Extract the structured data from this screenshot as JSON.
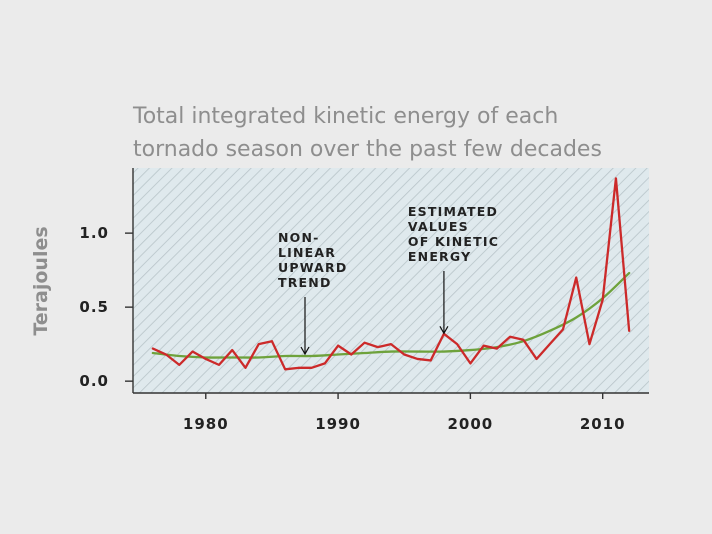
{
  "colors": {
    "background": "#ebebeb",
    "plot_background": "#dfe9ed",
    "hatch": "#b8c4c9",
    "observed": "#cc2a2a",
    "trend": "#6ea23c",
    "title": "#8e8e8e",
    "text": "#222222"
  },
  "chart_data": {
    "type": "line",
    "title_lines": [
      "Total integrated kinetic energy of each",
      "tornado season over the past few decades"
    ],
    "ylabel": "Terajoules",
    "xlabel": "",
    "xlim": [
      1974.5,
      2013.5
    ],
    "ylim": [
      -0.08,
      1.44
    ],
    "x_ticks": [
      {
        "value": 1980,
        "label": "1980"
      },
      {
        "value": 1990,
        "label": "1990"
      },
      {
        "value": 2000,
        "label": "2000"
      },
      {
        "value": 2010,
        "label": "2010"
      }
    ],
    "y_ticks": [
      {
        "value": 0.0,
        "label": "0.0"
      },
      {
        "value": 0.5,
        "label": "0.5"
      },
      {
        "value": 1.0,
        "label": "1.0"
      }
    ],
    "series": [
      {
        "name": "Estimated values of kinetic energy",
        "color": "#cc2a2a",
        "x": [
          1976,
          1977,
          1978,
          1979,
          1980,
          1981,
          1982,
          1983,
          1984,
          1985,
          1986,
          1987,
          1988,
          1989,
          1990,
          1991,
          1992,
          1993,
          1994,
          1995,
          1996,
          1997,
          1998,
          1999,
          2000,
          2001,
          2002,
          2003,
          2004,
          2005,
          2006,
          2007,
          2008,
          2009,
          2010,
          2011,
          2012
        ],
        "values": [
          0.22,
          0.18,
          0.11,
          0.2,
          0.15,
          0.11,
          0.21,
          0.09,
          0.25,
          0.27,
          0.08,
          0.09,
          0.09,
          0.12,
          0.24,
          0.18,
          0.26,
          0.23,
          0.25,
          0.18,
          0.15,
          0.14,
          0.32,
          0.25,
          0.12,
          0.24,
          0.22,
          0.3,
          0.28,
          0.15,
          0.25,
          0.35,
          0.7,
          0.25,
          0.55,
          1.37,
          0.34
        ]
      },
      {
        "name": "Non-linear upward trend",
        "color": "#6ea23c",
        "x": [
          1976,
          1978,
          1980,
          1982,
          1984,
          1986,
          1988,
          1990,
          1992,
          1994,
          1996,
          1998,
          2000,
          2002,
          2004,
          2006,
          2008,
          2010,
          2012
        ],
        "values": [
          0.19,
          0.17,
          0.16,
          0.16,
          0.16,
          0.17,
          0.17,
          0.18,
          0.19,
          0.2,
          0.2,
          0.2,
          0.21,
          0.23,
          0.27,
          0.34,
          0.43,
          0.56,
          0.73
        ]
      }
    ],
    "annotations": [
      {
        "lines": [
          "NON-",
          "LINEAR",
          "UPWARD",
          "TREND"
        ],
        "target": {
          "x": 1987.5,
          "y": 0.17
        }
      },
      {
        "lines": [
          "ESTIMATED",
          "VALUES",
          "OF KINETIC",
          "ENERGY"
        ],
        "target": {
          "x": 1998,
          "y": 0.31
        }
      }
    ]
  }
}
